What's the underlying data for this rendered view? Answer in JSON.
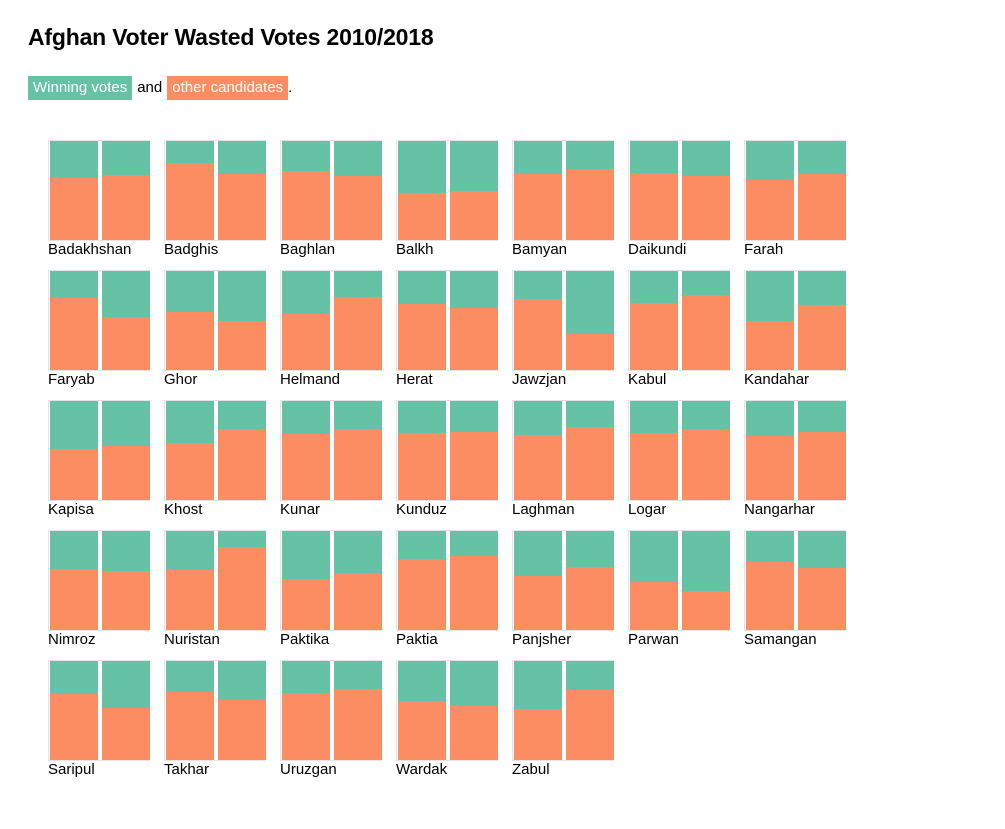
{
  "title": "Afghan Voter Wasted Votes 2010/2018",
  "legend": {
    "winning_label": "Winning votes",
    "connector": "and",
    "other_label": "other candidates",
    "terminator": "."
  },
  "colors": {
    "winning": "#66c2a5",
    "other": "#fc8d62"
  },
  "chart_data": {
    "type": "bar",
    "layout": "small-multiples-stacked-100",
    "periods": [
      "2010",
      "2018"
    ],
    "series": [
      {
        "name": "Winning votes",
        "role": "winning"
      },
      {
        "name": "other candidates",
        "role": "other"
      }
    ],
    "provinces": [
      {
        "name": "Badakhshan",
        "winning_share": [
          0.37,
          0.34
        ]
      },
      {
        "name": "Badghis",
        "winning_share": [
          0.22,
          0.33
        ]
      },
      {
        "name": "Baghlan",
        "winning_share": [
          0.3,
          0.35
        ]
      },
      {
        "name": "Balkh",
        "winning_share": [
          0.53,
          0.51
        ]
      },
      {
        "name": "Bamyan",
        "winning_share": [
          0.33,
          0.28
        ]
      },
      {
        "name": "Daikundi",
        "winning_share": [
          0.32,
          0.35
        ]
      },
      {
        "name": "Farah",
        "winning_share": [
          0.39,
          0.33
        ]
      },
      {
        "name": "Faryab",
        "winning_share": [
          0.27,
          0.46
        ]
      },
      {
        "name": "Ghor",
        "winning_share": [
          0.41,
          0.5
        ]
      },
      {
        "name": "Helmand",
        "winning_share": [
          0.43,
          0.26
        ]
      },
      {
        "name": "Herat",
        "winning_share": [
          0.33,
          0.37
        ]
      },
      {
        "name": "Jawzjan",
        "winning_share": [
          0.28,
          0.64
        ]
      },
      {
        "name": "Kabul",
        "winning_share": [
          0.32,
          0.24
        ]
      },
      {
        "name": "Kandahar",
        "winning_share": [
          0.5,
          0.34
        ]
      },
      {
        "name": "Kapisa",
        "winning_share": [
          0.48,
          0.45
        ]
      },
      {
        "name": "Khost",
        "winning_share": [
          0.42,
          0.28
        ]
      },
      {
        "name": "Kunar",
        "winning_share": [
          0.33,
          0.28
        ]
      },
      {
        "name": "Kunduz",
        "winning_share": [
          0.32,
          0.31
        ]
      },
      {
        "name": "Laghman",
        "winning_share": [
          0.34,
          0.26
        ]
      },
      {
        "name": "Logar",
        "winning_share": [
          0.32,
          0.28
        ]
      },
      {
        "name": "Nangarhar",
        "winning_share": [
          0.35,
          0.31
        ]
      },
      {
        "name": "Nimroz",
        "winning_share": [
          0.38,
          0.4
        ]
      },
      {
        "name": "Nuristan",
        "winning_share": [
          0.39,
          0.16
        ]
      },
      {
        "name": "Paktika",
        "winning_share": [
          0.48,
          0.42
        ]
      },
      {
        "name": "Paktia",
        "winning_share": [
          0.28,
          0.25
        ]
      },
      {
        "name": "Panjsher",
        "winning_share": [
          0.45,
          0.36
        ]
      },
      {
        "name": "Parwan",
        "winning_share": [
          0.52,
          0.61
        ]
      },
      {
        "name": "Samangan",
        "winning_share": [
          0.31,
          0.37
        ]
      },
      {
        "name": "Saripul",
        "winning_share": [
          0.33,
          0.47
        ]
      },
      {
        "name": "Takhar",
        "winning_share": [
          0.31,
          0.39
        ]
      },
      {
        "name": "Uruzgan",
        "winning_share": [
          0.32,
          0.28
        ]
      },
      {
        "name": "Wardak",
        "winning_share": [
          0.4,
          0.45
        ]
      },
      {
        "name": "Zabul",
        "winning_share": [
          0.48,
          0.29
        ]
      }
    ]
  }
}
